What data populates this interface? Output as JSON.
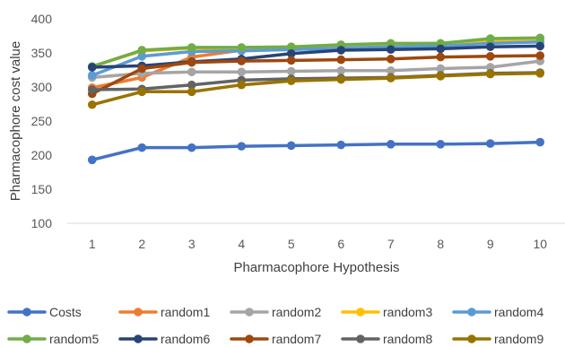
{
  "chart_data": {
    "type": "line",
    "title": "",
    "xlabel": "Pharmacophore Hypothesis",
    "ylabel": "Pharmacophore cost value",
    "x": [
      1,
      2,
      3,
      4,
      5,
      6,
      7,
      8,
      9,
      10
    ],
    "ylim": [
      100,
      400
    ],
    "yticks": [
      100,
      150,
      200,
      250,
      300,
      350,
      400
    ],
    "grid": false,
    "legend_position": "bottom",
    "series": [
      {
        "name": "Costs",
        "color": "#4472C4",
        "values": [
          193,
          211,
          211,
          213,
          214,
          215,
          216,
          216,
          217,
          219
        ]
      },
      {
        "name": "random1",
        "color": "#ED7D31",
        "values": [
          299,
          314,
          344,
          354,
          355,
          358,
          360,
          361,
          368,
          369
        ]
      },
      {
        "name": "random2",
        "color": "#A5A5A5",
        "values": [
          314,
          320,
          322,
          322,
          323,
          324,
          324,
          327,
          329,
          338
        ]
      },
      {
        "name": "random3",
        "color": "#FFC000",
        "values": [
          330,
          353,
          357,
          357,
          358,
          360,
          362,
          363,
          368,
          370
        ]
      },
      {
        "name": "random4",
        "color": "#5B9BD5",
        "values": [
          317,
          345,
          352,
          353,
          355,
          357,
          359,
          360,
          364,
          366
        ]
      },
      {
        "name": "random5",
        "color": "#70AD47",
        "values": [
          330,
          354,
          358,
          358,
          359,
          362,
          364,
          364,
          371,
          372
        ]
      },
      {
        "name": "random6",
        "color": "#264478",
        "values": [
          329,
          331,
          337,
          341,
          349,
          354,
          355,
          356,
          359,
          360
        ]
      },
      {
        "name": "random7",
        "color": "#9E480E",
        "values": [
          290,
          327,
          336,
          338,
          339,
          340,
          341,
          344,
          345,
          346
        ]
      },
      {
        "name": "random8",
        "color": "#636363",
        "values": [
          296,
          297,
          303,
          310,
          312,
          313,
          314,
          317,
          320,
          321
        ]
      },
      {
        "name": "random9",
        "color": "#997300",
        "values": [
          274,
          293,
          293,
          303,
          309,
          311,
          313,
          316,
          319,
          320
        ]
      }
    ]
  }
}
